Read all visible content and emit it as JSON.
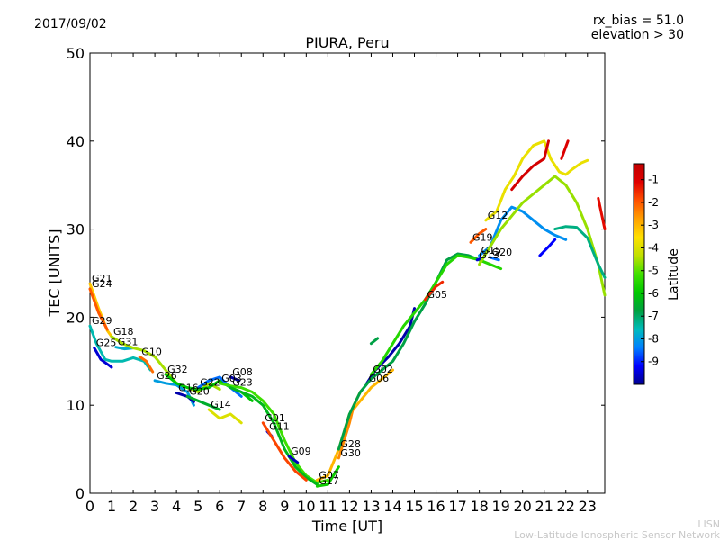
{
  "header": {
    "date": "2017/09/02",
    "rx_bias": "rx_bias = 51.0",
    "elevation": "elevation > 30"
  },
  "credits": {
    "line1": "LISN",
    "line2": "Low-Latitude Ionospheric Sensor Network"
  },
  "colors": {
    "colormap": [
      "#00008f",
      "#0000ff",
      "#0080ff",
      "#00bcbc",
      "#00a040",
      "#00c800",
      "#40e000",
      "#c0e000",
      "#ffe000",
      "#ffa000",
      "#ff5000",
      "#e00000",
      "#c00000"
    ]
  },
  "chart_data": {
    "type": "line",
    "title": "PIURA, Peru",
    "xlabel": "Time [UT]",
    "ylabel": "TEC [UNITS]",
    "xlim": [
      0,
      23.8
    ],
    "ylim": [
      0,
      50
    ],
    "xticks": [
      0,
      1,
      2,
      3,
      4,
      5,
      6,
      7,
      8,
      9,
      10,
      11,
      12,
      13,
      14,
      15,
      16,
      17,
      18,
      19,
      20,
      21,
      22,
      23
    ],
    "yticks": [
      0,
      10,
      20,
      30,
      40,
      50
    ],
    "colorbar": {
      "label": "Latitude",
      "range": [
        -10,
        -0.3
      ],
      "ticks": [
        -9,
        -8,
        -7,
        -6,
        -5,
        -4,
        -3,
        -2,
        -1
      ]
    },
    "series": [
      {
        "name": "G21",
        "lat": -3.2,
        "points": [
          [
            0,
            23.8
          ],
          [
            0.4,
            21
          ],
          [
            0.8,
            18.5
          ],
          [
            1.0,
            17.8
          ]
        ]
      },
      {
        "name": "G24",
        "lat": -2.0,
        "points": [
          [
            0,
            23.2
          ],
          [
            0.4,
            20.5
          ],
          [
            0.8,
            18.6
          ]
        ]
      },
      {
        "name": "G29",
        "lat": -7.5,
        "points": [
          [
            0,
            19.0
          ],
          [
            0.3,
            17.0
          ],
          [
            0.7,
            15.2
          ],
          [
            1.0,
            15.0
          ],
          [
            1.5,
            15.0
          ],
          [
            2.0,
            15.4
          ],
          [
            2.5,
            15.0
          ],
          [
            2.8,
            14.0
          ]
        ]
      },
      {
        "name": "G25",
        "lat": -9.5,
        "points": [
          [
            0.2,
            16.5
          ],
          [
            0.5,
            15.2
          ],
          [
            0.9,
            14.5
          ],
          [
            1.0,
            14.3
          ]
        ]
      },
      {
        "name": "G31",
        "lat": -7.8,
        "points": [
          [
            1.2,
            16.6
          ],
          [
            1.6,
            16.4
          ],
          [
            2.0,
            16.5
          ]
        ]
      },
      {
        "name": "G18",
        "lat": -4.5,
        "points": [
          [
            1.0,
            17.8
          ],
          [
            1.5,
            17.0
          ],
          [
            2.0,
            16.5
          ],
          [
            2.5,
            16.2
          ],
          [
            3.0,
            15.5
          ],
          [
            3.5,
            14.0
          ],
          [
            4.0,
            12.5
          ],
          [
            4.5,
            12.0
          ],
          [
            5.0,
            11.5
          ],
          [
            5.5,
            12.5
          ],
          [
            6.0,
            11.8
          ]
        ]
      },
      {
        "name": "G10",
        "lat": -2.2,
        "points": [
          [
            2.3,
            15.5
          ],
          [
            2.6,
            15.0
          ],
          [
            2.9,
            13.8
          ]
        ]
      },
      {
        "name": "G26",
        "lat": -8.0,
        "points": [
          [
            3.0,
            12.8
          ],
          [
            3.5,
            12.5
          ],
          [
            4.0,
            12.3
          ],
          [
            4.5,
            11.5
          ],
          [
            4.8,
            10.0
          ]
        ]
      },
      {
        "name": "G16",
        "lat": -9.8,
        "points": [
          [
            4.0,
            11.4
          ],
          [
            4.5,
            11.0
          ],
          [
            4.8,
            10.4
          ]
        ]
      },
      {
        "name": "G32",
        "lat": -6.0,
        "points": [
          [
            3.5,
            13.5
          ],
          [
            4.0,
            12.5
          ],
          [
            4.5,
            12.0
          ],
          [
            5.0,
            11.8
          ],
          [
            5.5,
            12.0
          ],
          [
            6.0,
            12.8
          ],
          [
            6.5,
            12.0
          ],
          [
            7.0,
            11.5
          ],
          [
            7.5,
            10.5
          ]
        ]
      },
      {
        "name": "G20",
        "lat": -6.5,
        "points": [
          [
            4.5,
            11.0
          ],
          [
            5.0,
            10.5
          ],
          [
            5.5,
            10.0
          ],
          [
            6.0,
            9.5
          ]
        ]
      },
      {
        "name": "G22",
        "lat": -8.5,
        "points": [
          [
            5.0,
            12.0
          ],
          [
            5.5,
            12.8
          ],
          [
            6.0,
            13.2
          ],
          [
            6.5,
            12.0
          ],
          [
            7.0,
            11.0
          ]
        ]
      },
      {
        "name": "G14",
        "lat": -4.0,
        "points": [
          [
            5.5,
            9.5
          ],
          [
            6.0,
            8.5
          ],
          [
            6.5,
            9.0
          ],
          [
            7.0,
            8.0
          ]
        ]
      },
      {
        "name": "G08",
        "lat": -9.8,
        "points": [
          [
            6.5,
            13.2
          ],
          [
            6.9,
            12.8
          ]
        ]
      },
      {
        "name": "G03",
        "lat": -5.2,
        "points": [
          [
            6.0,
            12.5
          ],
          [
            6.5,
            12.2
          ],
          [
            7.0,
            12.0
          ],
          [
            7.5,
            11.5
          ],
          [
            8.0,
            10.5
          ],
          [
            8.5,
            9.0
          ],
          [
            9.0,
            6.0
          ],
          [
            9.5,
            3.5
          ],
          [
            10.0,
            2.0
          ],
          [
            10.5,
            1.2
          ],
          [
            11.0,
            1.5
          ]
        ]
      },
      {
        "name": "G23",
        "lat": -6.3,
        "points": [
          [
            6.5,
            12.0
          ],
          [
            7.0,
            11.5
          ],
          [
            7.5,
            11.0
          ],
          [
            8.0,
            10.0
          ],
          [
            8.5,
            8.0
          ],
          [
            9.0,
            5.0
          ],
          [
            9.5,
            3.0
          ],
          [
            10.0,
            1.8
          ],
          [
            10.5,
            1.0
          ]
        ]
      },
      {
        "name": "G11",
        "lat": -9.5,
        "points": [
          [
            8.2,
            7.0
          ],
          [
            8.4,
            6.5
          ]
        ]
      },
      {
        "name": "G01",
        "lat": -1.8,
        "points": [
          [
            8.0,
            8.0
          ],
          [
            8.5,
            6.0
          ],
          [
            9.0,
            4.0
          ],
          [
            9.5,
            2.5
          ],
          [
            10.0,
            1.5
          ]
        ]
      },
      {
        "name": "G09",
        "lat": -9.7,
        "points": [
          [
            9.2,
            4.2
          ],
          [
            9.6,
            3.5
          ]
        ]
      },
      {
        "name": "G07",
        "lat": -3.0,
        "points": [
          [
            10.5,
            1.5
          ],
          [
            11.0,
            2.0
          ],
          [
            11.5,
            5.0
          ],
          [
            12.0,
            9.0
          ],
          [
            12.5,
            10.5
          ],
          [
            13.0,
            12.0
          ],
          [
            13.5,
            13.0
          ],
          [
            14.0,
            14.0
          ]
        ]
      },
      {
        "name": "G17",
        "lat": -5.8,
        "points": [
          [
            10.5,
            0.8
          ],
          [
            11.0,
            1.0
          ],
          [
            11.5,
            3.0
          ]
        ]
      },
      {
        "name": "G30",
        "lat": -2.5,
        "points": [
          [
            11.5,
            4.0
          ],
          [
            12.0,
            8.0
          ],
          [
            12.2,
            10.0
          ],
          [
            12.5,
            11.5
          ]
        ]
      },
      {
        "name": "G06",
        "lat": -9.8,
        "points": [
          [
            12.8,
            12.5
          ],
          [
            13.2,
            14.0
          ],
          [
            13.8,
            15.5
          ],
          [
            14.3,
            17.0
          ],
          [
            14.8,
            19.0
          ],
          [
            15.0,
            21.0
          ]
        ]
      },
      {
        "name": "G28",
        "lat": -6.8,
        "points": [
          [
            11.5,
            5.0
          ],
          [
            12.0,
            9.0
          ],
          [
            12.5,
            11.5
          ],
          [
            13.0,
            13.0
          ],
          [
            13.5,
            14.0
          ],
          [
            14.0,
            15.0
          ],
          [
            14.5,
            17.0
          ],
          [
            15.0,
            19.5
          ],
          [
            15.5,
            21.5
          ],
          [
            16.0,
            24.0
          ],
          [
            16.5,
            26.5
          ],
          [
            17.0,
            27.2
          ],
          [
            17.5,
            27.0
          ],
          [
            18.0,
            26.5
          ]
        ]
      },
      {
        "name": "G02",
        "lat": -5.5,
        "points": [
          [
            13.0,
            13.5
          ],
          [
            13.5,
            15.0
          ],
          [
            14.0,
            17.0
          ],
          [
            14.5,
            19.0
          ],
          [
            15.0,
            20.5
          ],
          [
            15.5,
            22.0
          ],
          [
            16.0,
            24.0
          ],
          [
            16.5,
            26.0
          ],
          [
            17.0,
            27.0
          ],
          [
            17.5,
            26.8
          ],
          [
            18.0,
            26.5
          ],
          [
            18.5,
            26.0
          ],
          [
            19.0,
            25.5
          ]
        ]
      },
      {
        "name": "G05",
        "lat": -1.5,
        "points": [
          [
            15.5,
            22.0
          ],
          [
            16.0,
            23.5
          ],
          [
            16.3,
            24.0
          ]
        ]
      },
      {
        "name": "G19",
        "lat": -2.0,
        "points": [
          [
            17.6,
            28.5
          ],
          [
            18.0,
            29.5
          ],
          [
            18.3,
            30.0
          ]
        ]
      },
      {
        "name": "G13",
        "lat": -9.5,
        "points": [
          [
            17.9,
            26.5
          ],
          [
            18.2,
            26.8
          ]
        ]
      },
      {
        "name": "G20",
        "lat": -8.5,
        "points": [
          [
            18.5,
            26.8
          ],
          [
            18.9,
            26.5
          ]
        ]
      },
      {
        "name": "G15",
        "lat": -8.2,
        "points": [
          [
            18.0,
            27.0
          ],
          [
            18.5,
            28.0
          ],
          [
            19.0,
            31.0
          ],
          [
            19.5,
            32.5
          ],
          [
            20.0,
            32.0
          ],
          [
            20.5,
            31.0
          ],
          [
            21.0,
            30.0
          ],
          [
            21.5,
            29.3
          ],
          [
            22.0,
            28.8
          ]
        ]
      },
      {
        "name": "G12",
        "lat": -3.8,
        "points": [
          [
            18.3,
            31.0
          ],
          [
            18.8,
            32.0
          ],
          [
            19.2,
            34.5
          ],
          [
            19.6,
            36.0
          ],
          [
            20.0,
            38.0
          ],
          [
            20.5,
            39.5
          ],
          [
            21.0,
            40.0
          ],
          [
            21.3,
            38.0
          ],
          [
            21.7,
            36.5
          ],
          [
            22.0,
            36.2
          ],
          [
            22.3,
            36.8
          ],
          [
            22.7,
            37.5
          ],
          [
            23.0,
            37.8
          ]
        ]
      },
      {
        "name": "",
        "lat": -4.6,
        "points": [
          [
            18.0,
            26.0
          ],
          [
            18.5,
            28.0
          ],
          [
            19.0,
            30.0
          ],
          [
            19.5,
            31.5
          ],
          [
            20.0,
            33.0
          ],
          [
            20.5,
            34.0
          ],
          [
            21.0,
            35.0
          ],
          [
            21.5,
            36.0
          ],
          [
            22.0,
            35.0
          ],
          [
            22.5,
            33.0
          ],
          [
            23.0,
            30.0
          ],
          [
            23.5,
            26.0
          ],
          [
            23.8,
            22.5
          ]
        ]
      },
      {
        "name": "",
        "lat": -0.8,
        "points": [
          [
            19.5,
            34.5
          ],
          [
            20.0,
            36.0
          ],
          [
            20.5,
            37.2
          ],
          [
            21.0,
            38.0
          ],
          [
            21.2,
            40.0
          ]
        ]
      },
      {
        "name": "",
        "lat": -1.0,
        "points": [
          [
            21.8,
            38.0
          ],
          [
            22.1,
            40.0
          ]
        ]
      },
      {
        "name": "",
        "lat": -7.2,
        "points": [
          [
            21.5,
            30.0
          ],
          [
            22.0,
            30.3
          ],
          [
            22.5,
            30.2
          ],
          [
            23.0,
            29.0
          ],
          [
            23.5,
            26.0
          ],
          [
            23.8,
            24.5
          ]
        ]
      },
      {
        "name": "",
        "lat": -1.2,
        "points": [
          [
            23.5,
            33.5
          ],
          [
            23.8,
            30.0
          ]
        ]
      },
      {
        "name": "",
        "lat": -9.2,
        "points": [
          [
            20.8,
            27.0
          ],
          [
            21.2,
            28.0
          ],
          [
            21.5,
            28.8
          ]
        ]
      },
      {
        "name": "",
        "lat": -6.8,
        "points": [
          [
            13.0,
            17.0
          ],
          [
            13.3,
            17.6
          ]
        ]
      }
    ]
  }
}
